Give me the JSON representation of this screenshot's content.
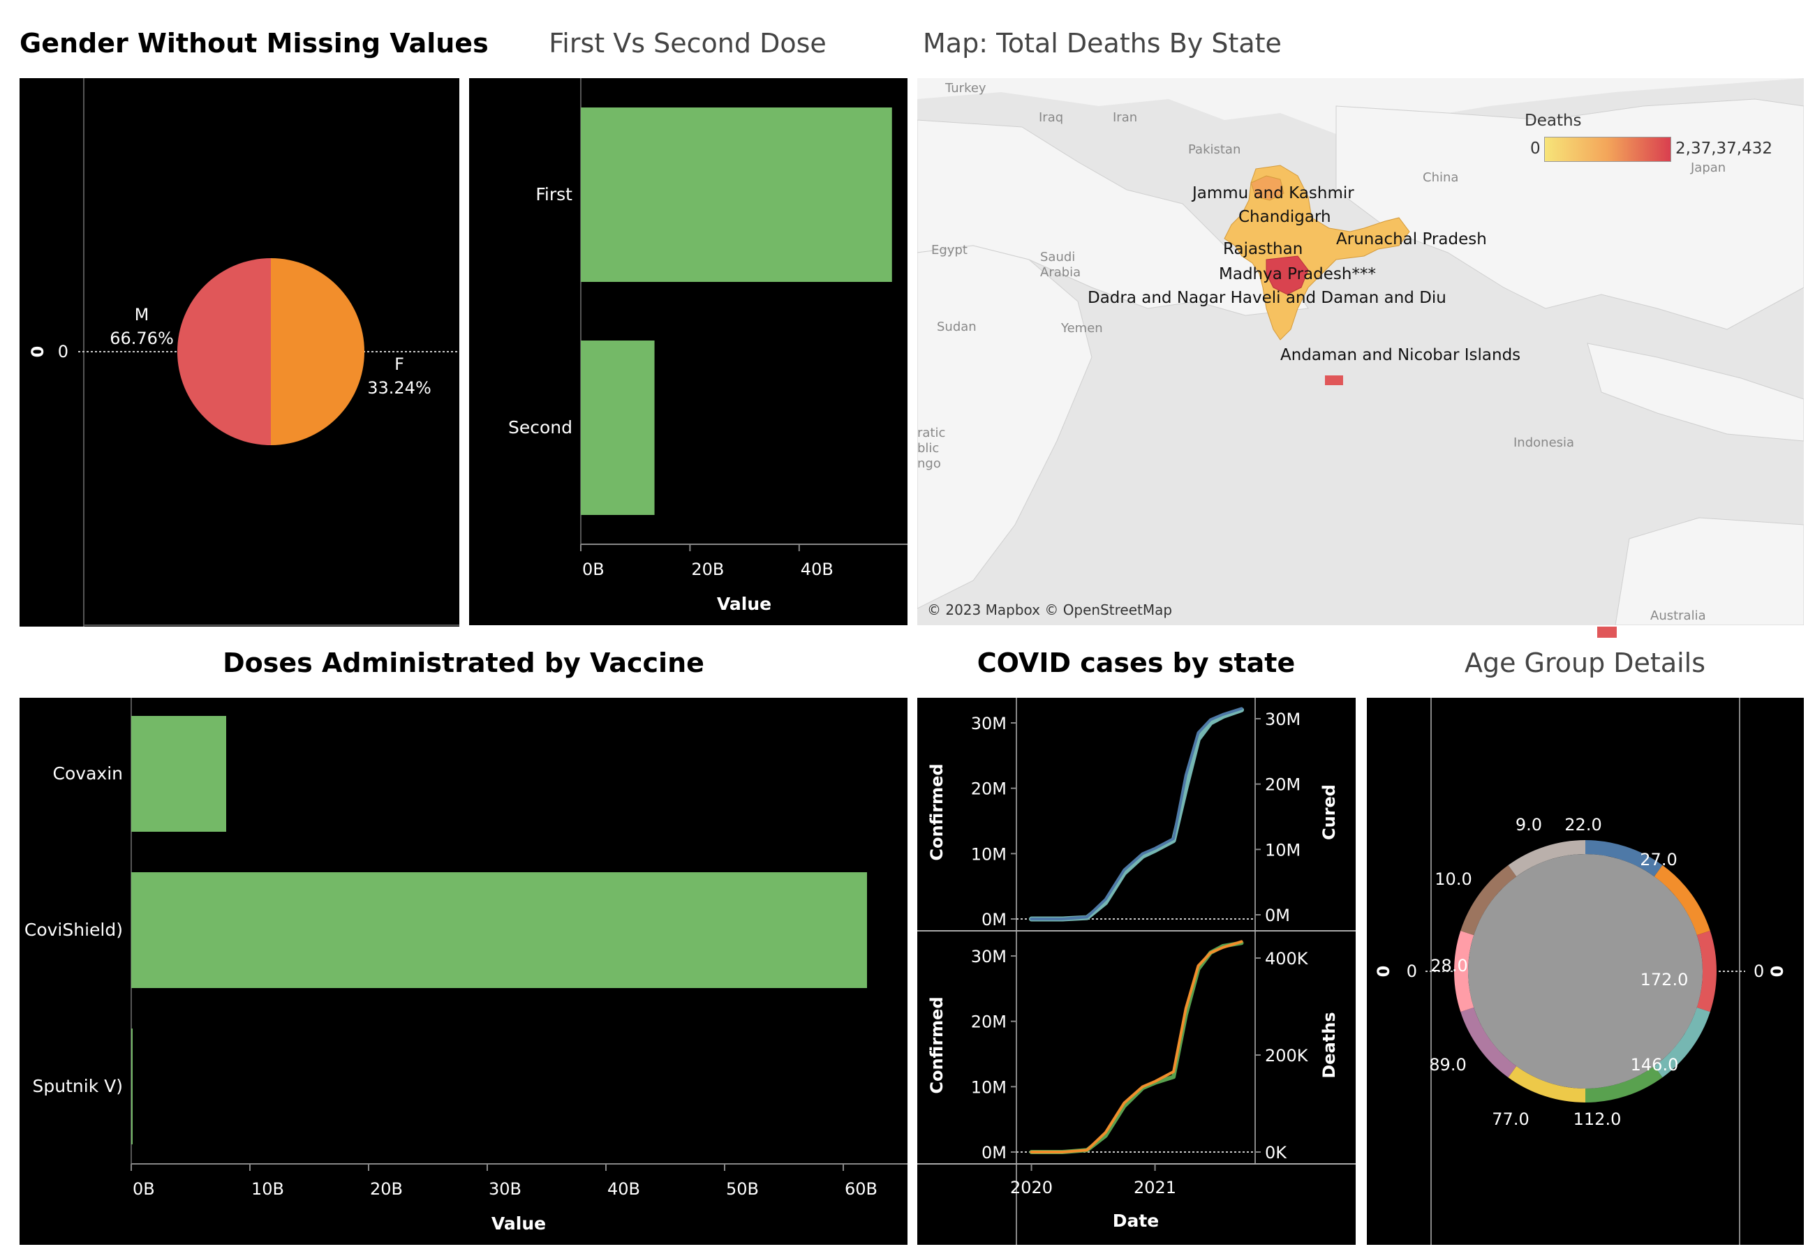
{
  "titles": {
    "gender": "Gender Without Missing Values",
    "doses": "First Vs Second Dose",
    "map": "Map: Total Deaths By State",
    "vaccine": "Doses Administrated by Vaccine",
    "covid": "COVID cases by state",
    "age": "Age Group Details"
  },
  "colors": {
    "bar": "#74b967",
    "male": "#e05759",
    "female": "#f28e2c",
    "confirmed": "#4e79a7",
    "cured": "#76b7b2",
    "deaths_a": "#59a14f",
    "deaths_b": "#f28e2c",
    "donut_center": "#999999"
  },
  "gender_chart": {
    "axis_zero": "0",
    "axis_side_label": "0",
    "labels": [
      {
        "name": "M",
        "pct": "66.76%"
      },
      {
        "name": "F",
        "pct": "33.24%"
      }
    ]
  },
  "dose_chart": {
    "xlabel": "Value",
    "ticks": [
      "0B",
      "20B",
      "40B"
    ]
  },
  "vaccine_chart": {
    "xlabel": "Value",
    "ticks": [
      "0B",
      "10B",
      "20B",
      "30B",
      "40B",
      "50B",
      "60B"
    ]
  },
  "covid_chart": {
    "top_left_label": "Confirmed",
    "top_right_label": "Cured",
    "bottom_left_label": "Confirmed",
    "bottom_right_label": "Deaths",
    "xlabel": "Date",
    "left_ticks": [
      "30M",
      "20M",
      "10M",
      "0M"
    ],
    "top_right_ticks": [
      "30M",
      "20M",
      "10M",
      "0M"
    ],
    "bottom_right_ticks": [
      "400K",
      "200K",
      "0K"
    ],
    "x_ticks": [
      "2020",
      "2021"
    ]
  },
  "age_chart": {
    "left_axis_label": "0",
    "left_axis_zero": "0",
    "right_axis_label": "0",
    "right_axis_zero": "0"
  },
  "map": {
    "legend_title": "Deaths",
    "legend_min": "0",
    "legend_max": "2,37,37,432",
    "copyright": "© 2023 Mapbox © OpenStreetMap",
    "state_labels": [
      "Jammu and Kashmir",
      "Chandigarh",
      "Rajasthan",
      "Arunachal Pradesh",
      "Madhya Pradesh***",
      "Dadra and Nagar Haveli and Daman and Diu",
      "Andaman and Nicobar Islands"
    ],
    "country_labels": [
      "Turkey",
      "Iraq",
      "Iran",
      "Pakistan",
      "China",
      "Japan",
      "Egypt",
      "Saudi",
      "Arabia",
      "Sudan",
      "Yemen",
      "Indonesia",
      "Australia",
      "ratic",
      "blic",
      "ngo"
    ]
  },
  "chart_data": [
    {
      "type": "pie",
      "title": "Gender Without Missing Values",
      "labels": [
        "M",
        "F"
      ],
      "values": [
        66.76,
        33.24
      ],
      "note_values": "display shows equal halves"
    },
    {
      "type": "bar",
      "orientation": "horizontal",
      "title": "First Vs Second Dose",
      "categories": [
        "First",
        "Second"
      ],
      "values": [
        57,
        13.5
      ],
      "xlabel": "Value",
      "xlim": [
        0,
        60
      ]
    },
    {
      "type": "bar",
      "orientation": "horizontal",
      "title": "Doses Administrated by Vaccine",
      "categories": [
        "Covaxin",
        "CoviShield)",
        "Sputnik V)"
      ],
      "values": [
        8,
        62,
        0.1
      ],
      "xlabel": "Value",
      "xlim": [
        0,
        65
      ]
    },
    {
      "type": "line",
      "title": "COVID cases by state",
      "x": [
        2020.0,
        2020.25,
        2020.45,
        2020.6,
        2020.75,
        2020.9,
        2021.0,
        2021.15,
        2021.25,
        2021.35,
        2021.45,
        2021.55,
        2021.7
      ],
      "series": [
        {
          "name": "Confirmed",
          "values": [
            0,
            0,
            0.3,
            3,
            7.5,
            10,
            10.8,
            12.3,
            22,
            28.5,
            30.5,
            31.3,
            32.2
          ]
        },
        {
          "name": "Cured",
          "values": [
            0,
            0,
            0.2,
            2.5,
            7,
            9.6,
            10.5,
            12,
            20,
            27.5,
            30,
            31,
            32
          ]
        },
        {
          "name": "Confirmed",
          "values": [
            0,
            0,
            0.3,
            3,
            7.5,
            10,
            10.8,
            12.3,
            22,
            28.5,
            30.5,
            31.3,
            32.2
          ]
        },
        {
          "name": "Deaths",
          "values": [
            0,
            0,
            0.3,
            2.5,
            7,
            9.8,
            10.6,
            11.5,
            21,
            28,
            30.5,
            31.5,
            32
          ]
        }
      ],
      "xlabel": "Date",
      "ylabel": "Confirmed"
    },
    {
      "type": "pie",
      "subtype": "donut",
      "title": "Age Group Details",
      "values": [
        22.0,
        27.0,
        172.0,
        146.0,
        112.0,
        77.0,
        89.0,
        28.0,
        10.0,
        9.0
      ],
      "labels": [
        "22.0",
        "27.0",
        "172.0",
        "146.0",
        "112.0",
        "77.0",
        "89.0",
        "28.0",
        "10.0",
        "9.0"
      ],
      "colors": [
        "#4e79a7",
        "#f28e2c",
        "#e05759",
        "#76b7b2",
        "#59a14f",
        "#edc949",
        "#af7aa1",
        "#ff9da7",
        "#9c755f",
        "#bab0ab"
      ]
    }
  ]
}
